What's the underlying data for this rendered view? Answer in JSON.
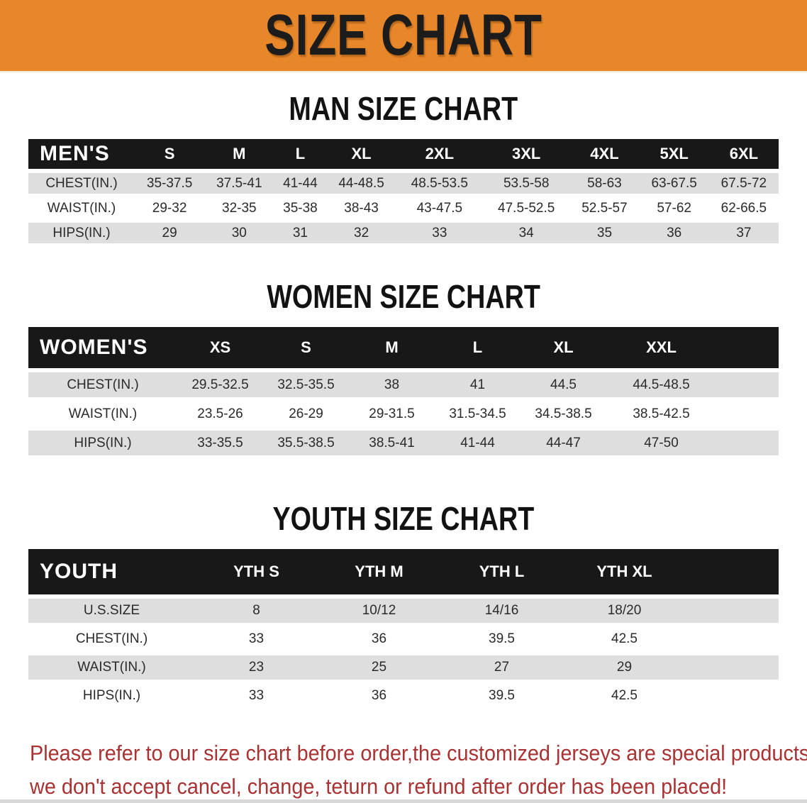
{
  "banner": {
    "title": "SIZE CHART",
    "bg_color": "#E8872A",
    "text_color": "#1c1c1c"
  },
  "colors": {
    "table_header_bar": "#181818",
    "row_stripe": "#DEDEDE",
    "footer_text": "#A93232"
  },
  "sections": [
    {
      "heading": "MAN SIZE CHART",
      "table": {
        "header_label": "MEN'S",
        "columns": [
          "S",
          "M",
          "L",
          "XL",
          "2XL",
          "3XL",
          "4XL",
          "5XL",
          "6XL"
        ],
        "rows": [
          {
            "label": "CHEST(IN.)",
            "values": [
              "35-37.5",
              "37.5-41",
              "41-44",
              "44-48.5",
              "48.5-53.5",
              "53.5-58",
              "58-63",
              "63-67.5",
              "67.5-72"
            ]
          },
          {
            "label": "WAIST(IN.)",
            "values": [
              "29-32",
              "32-35",
              "35-38",
              "38-43",
              "43-47.5",
              "47.5-52.5",
              "52.5-57",
              "57-62",
              "62-66.5"
            ]
          },
          {
            "label": "HIPS(IN.)",
            "values": [
              "29",
              "30",
              "31",
              "32",
              "33",
              "34",
              "35",
              "36",
              "37"
            ]
          }
        ]
      }
    },
    {
      "heading": "WOMEN SIZE CHART",
      "table": {
        "header_label": "WOMEN'S",
        "columns": [
          "XS",
          "S",
          "M",
          "L",
          "XL",
          "XXL"
        ],
        "rows": [
          {
            "label": "CHEST(IN.)",
            "values": [
              "29.5-32.5",
              "32.5-35.5",
              "38",
              "41",
              "44.5",
              "44.5-48.5"
            ]
          },
          {
            "label": "WAIST(IN.)",
            "values": [
              "23.5-26",
              "26-29",
              "29-31.5",
              "31.5-34.5",
              "34.5-38.5",
              "38.5-42.5"
            ]
          },
          {
            "label": "HIPS(IN.)",
            "values": [
              "33-35.5",
              "35.5-38.5",
              "38.5-41",
              "41-44",
              "44-47",
              "47-50"
            ]
          }
        ]
      }
    },
    {
      "heading": "YOUTH SIZE CHART",
      "table": {
        "header_label": "YOUTH",
        "columns": [
          "YTH S",
          "YTH M",
          "YTH L",
          "YTH XL"
        ],
        "rows": [
          {
            "label": "U.S.SIZE",
            "values": [
              "8",
              "10/12",
              "14/16",
              "18/20"
            ]
          },
          {
            "label": "CHEST(IN.)",
            "values": [
              "33",
              "36",
              "39.5",
              "42.5"
            ]
          },
          {
            "label": "WAIST(IN.)",
            "values": [
              "23",
              "25",
              "27",
              "29"
            ]
          },
          {
            "label": "HIPS(IN.)",
            "values": [
              "33",
              "36",
              "39.5",
              "42.5"
            ]
          }
        ]
      }
    }
  ],
  "footer": {
    "line1": "Please refer to our size chart before order,the customized jerseys are special products,",
    "line2": "we don't accept cancel, change, teturn or refund after order has been placed!"
  }
}
